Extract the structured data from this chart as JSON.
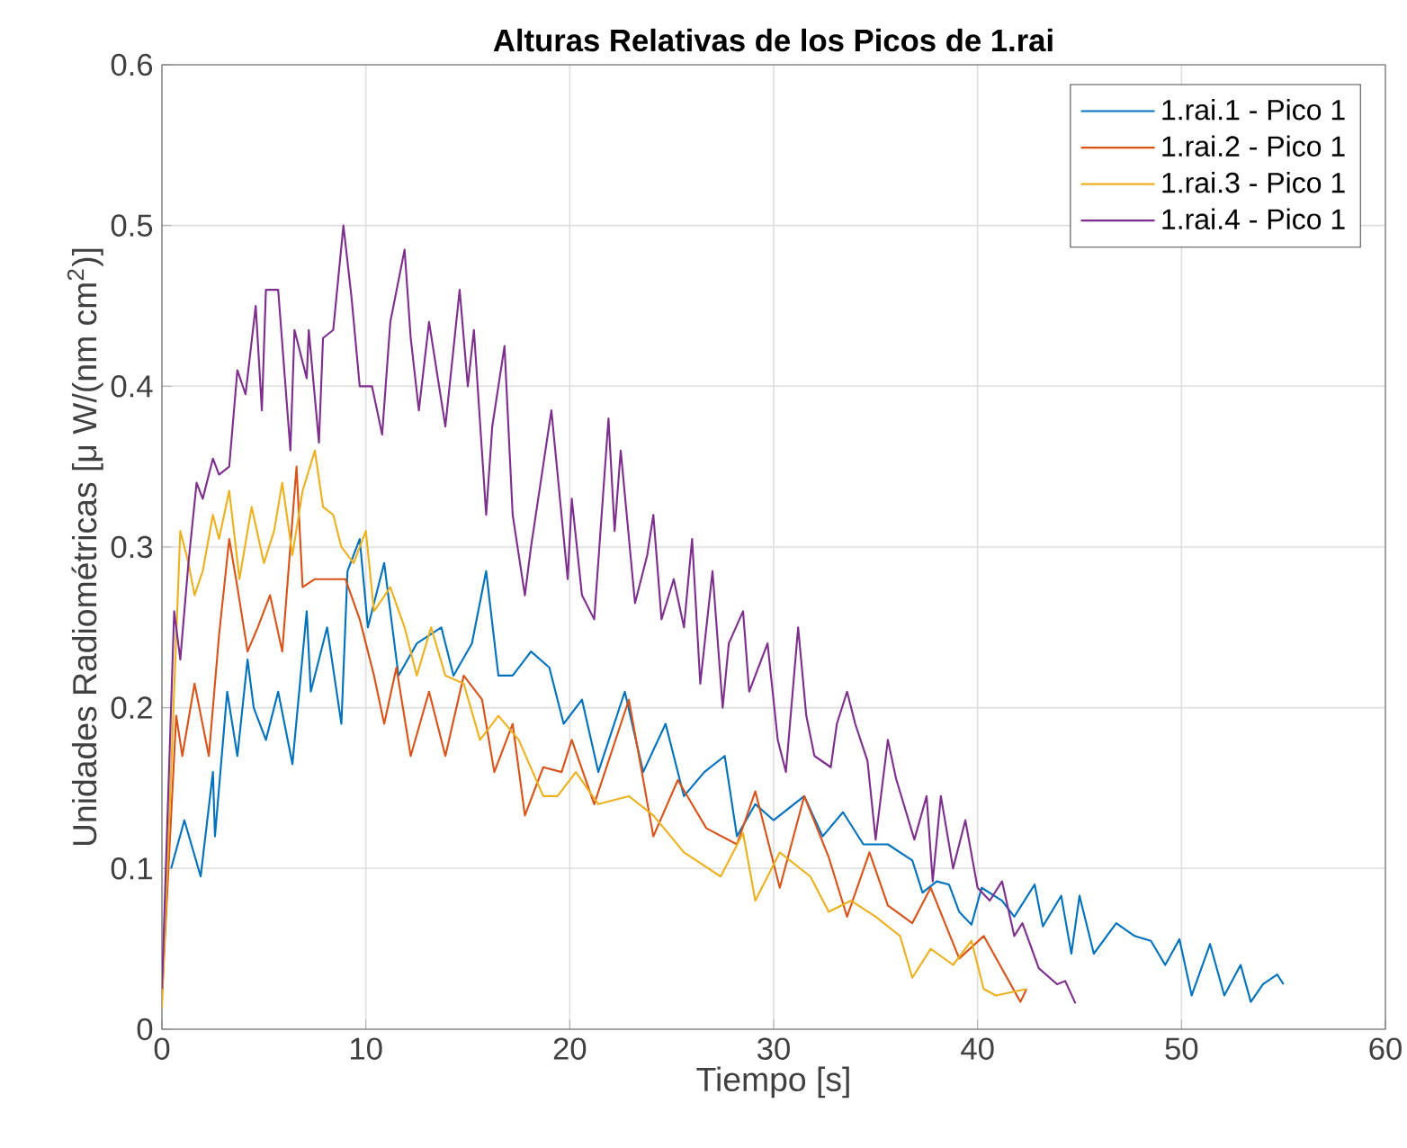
{
  "chart_data": {
    "type": "line",
    "title": "Alturas Relativas de los Picos de 1.rai",
    "xlabel": "Tiempo [s]",
    "ylabel": "Unidades Radiométricas [μ W/(nm cm$^{2}$)]",
    "xlim": [
      0,
      60
    ],
    "ylim": [
      0,
      0.6
    ],
    "xticks": [
      0,
      10,
      20,
      30,
      40,
      50,
      60
    ],
    "yticks": [
      0,
      0.1,
      0.2,
      0.3,
      0.4,
      0.5,
      0.6
    ],
    "grid": true,
    "legend": "top right",
    "series": [
      {
        "name": "1.rai.1 - Pico 1",
        "color": "#0072bd",
        "x": [
          0.45,
          1.1,
          1.9,
          2.5,
          2.6,
          3.2,
          3.7,
          4.2,
          4.5,
          5.1,
          5.7,
          6.4,
          7.1,
          7.3,
          8.1,
          8.8,
          9.1,
          9.7,
          10.1,
          10.9,
          11.6,
          12.5,
          13.7,
          14.3,
          15.2,
          15.9,
          16.5,
          17.2,
          18.1,
          19.0,
          19.7,
          20.6,
          21.4,
          22.7,
          23.6,
          24.7,
          25.6,
          26.6,
          27.6,
          28.2,
          29.1,
          30.0,
          31.5,
          32.4,
          33.4,
          34.4,
          35.6,
          36.8,
          37.3,
          38.0,
          38.6,
          39.1,
          39.7,
          40.2,
          41.2,
          41.8,
          42.8,
          43.2,
          44.1,
          44.6,
          45.0,
          45.7,
          46.8,
          47.7,
          48.5,
          49.2,
          49.9,
          50.5,
          51.4,
          52.1,
          52.9,
          53.4,
          54.0,
          54.7,
          55.0
        ],
        "values": [
          0.1,
          0.13,
          0.095,
          0.16,
          0.12,
          0.21,
          0.17,
          0.23,
          0.2,
          0.18,
          0.21,
          0.165,
          0.26,
          0.21,
          0.25,
          0.19,
          0.285,
          0.305,
          0.25,
          0.29,
          0.22,
          0.24,
          0.25,
          0.22,
          0.24,
          0.285,
          0.22,
          0.22,
          0.235,
          0.225,
          0.19,
          0.205,
          0.16,
          0.21,
          0.16,
          0.19,
          0.145,
          0.16,
          0.17,
          0.12,
          0.14,
          0.13,
          0.145,
          0.12,
          0.135,
          0.115,
          0.115,
          0.105,
          0.085,
          0.092,
          0.09,
          0.073,
          0.065,
          0.088,
          0.08,
          0.07,
          0.09,
          0.064,
          0.083,
          0.047,
          0.083,
          0.047,
          0.066,
          0.058,
          0.055,
          0.04,
          0.056,
          0.021,
          0.053,
          0.021,
          0.04,
          0.017,
          0.028,
          0.034,
          0.028
        ]
      },
      {
        "name": "1.rai.2 - Pico 1",
        "color": "#d95319",
        "x": [
          0,
          0.7,
          1.0,
          1.6,
          2.3,
          2.8,
          3.3,
          3.7,
          4.2,
          4.7,
          5.3,
          5.9,
          6.6,
          6.9,
          7.5,
          8.2,
          9.0,
          9.7,
          10.4,
          10.9,
          11.5,
          12.2,
          13.1,
          13.9,
          14.8,
          15.7,
          16.3,
          17.2,
          17.8,
          18.7,
          19.6,
          20.1,
          21.2,
          22.9,
          24.1,
          25.3,
          26.7,
          28.2,
          29.1,
          30.3,
          31.5,
          32.7,
          33.6,
          34.7,
          35.6,
          36.8,
          37.7,
          39.1,
          40.3,
          42.1,
          42.4
        ],
        "values": [
          0.02,
          0.195,
          0.17,
          0.215,
          0.17,
          0.245,
          0.305,
          0.275,
          0.235,
          0.25,
          0.27,
          0.235,
          0.35,
          0.275,
          0.28,
          0.28,
          0.28,
          0.255,
          0.22,
          0.19,
          0.225,
          0.17,
          0.21,
          0.17,
          0.22,
          0.205,
          0.16,
          0.19,
          0.133,
          0.163,
          0.16,
          0.18,
          0.14,
          0.205,
          0.12,
          0.155,
          0.125,
          0.115,
          0.148,
          0.088,
          0.145,
          0.107,
          0.07,
          0.11,
          0.077,
          0.066,
          0.088,
          0.044,
          0.058,
          0.017,
          0.025
        ]
      },
      {
        "name": "1.rai.3 - Pico 1",
        "color": "#edb120",
        "x": [
          0,
          0.9,
          1.3,
          1.6,
          2.0,
          2.5,
          2.8,
          3.3,
          3.8,
          4.4,
          5.0,
          5.5,
          5.9,
          6.4,
          6.9,
          7.5,
          7.9,
          8.4,
          8.8,
          9.4,
          10.0,
          10.4,
          11.2,
          11.9,
          12.5,
          13.2,
          13.9,
          14.8,
          15.6,
          16.5,
          17.5,
          18.7,
          19.4,
          20.3,
          21.4,
          22.9,
          24.1,
          25.6,
          27.4,
          28.5,
          29.1,
          30.3,
          31.8,
          32.7,
          33.8,
          35.0,
          36.2,
          36.8,
          37.7,
          38.8,
          39.7,
          40.3,
          40.9,
          42.4
        ],
        "values": [
          0.013,
          0.31,
          0.29,
          0.27,
          0.285,
          0.32,
          0.305,
          0.335,
          0.28,
          0.325,
          0.29,
          0.31,
          0.34,
          0.295,
          0.335,
          0.36,
          0.325,
          0.32,
          0.3,
          0.29,
          0.31,
          0.26,
          0.275,
          0.25,
          0.22,
          0.25,
          0.22,
          0.215,
          0.18,
          0.195,
          0.18,
          0.145,
          0.145,
          0.16,
          0.14,
          0.145,
          0.133,
          0.11,
          0.095,
          0.122,
          0.08,
          0.11,
          0.095,
          0.073,
          0.08,
          0.07,
          0.058,
          0.032,
          0.05,
          0.04,
          0.055,
          0.025,
          0.021,
          0.025
        ]
      },
      {
        "name": "1.rai.4 - Pico 1",
        "color": "#7e2f8e",
        "x": [
          0,
          0.6,
          0.9,
          1.3,
          1.7,
          2.0,
          2.5,
          2.8,
          3.3,
          3.7,
          4.1,
          4.6,
          4.9,
          5.1,
          5.7,
          6.3,
          6.5,
          7.1,
          7.2,
          7.7,
          7.9,
          8.4,
          8.9,
          9.3,
          9.7,
          10.3,
          10.8,
          11.2,
          11.9,
          12.2,
          12.6,
          13.1,
          13.9,
          14.6,
          15.0,
          15.3,
          15.9,
          16.2,
          16.8,
          17.2,
          17.8,
          18.1,
          19.1,
          19.9,
          20.1,
          20.6,
          21.2,
          21.9,
          22.2,
          22.5,
          23.2,
          23.8,
          24.1,
          24.5,
          25.1,
          25.6,
          26.0,
          26.4,
          27.0,
          27.5,
          27.8,
          28.5,
          28.8,
          29.7,
          30.2,
          30.6,
          31.2,
          31.6,
          32.0,
          32.8,
          33.1,
          33.6,
          34.0,
          34.6,
          35.0,
          35.6,
          36.0,
          36.9,
          37.5,
          37.8,
          38.2,
          38.8,
          39.4,
          40.0,
          40.6,
          41.2,
          41.8,
          42.2,
          43.0,
          43.9,
          44.3,
          44.8
        ],
        "values": [
          0.025,
          0.26,
          0.23,
          0.29,
          0.34,
          0.33,
          0.355,
          0.345,
          0.35,
          0.41,
          0.395,
          0.45,
          0.385,
          0.46,
          0.46,
          0.36,
          0.435,
          0.405,
          0.435,
          0.365,
          0.43,
          0.435,
          0.5,
          0.455,
          0.4,
          0.4,
          0.37,
          0.44,
          0.485,
          0.43,
          0.385,
          0.44,
          0.375,
          0.46,
          0.4,
          0.435,
          0.32,
          0.375,
          0.425,
          0.32,
          0.27,
          0.3,
          0.385,
          0.28,
          0.33,
          0.27,
          0.255,
          0.38,
          0.31,
          0.36,
          0.265,
          0.295,
          0.32,
          0.255,
          0.28,
          0.25,
          0.305,
          0.215,
          0.285,
          0.2,
          0.24,
          0.26,
          0.21,
          0.24,
          0.18,
          0.16,
          0.25,
          0.195,
          0.17,
          0.163,
          0.19,
          0.21,
          0.19,
          0.167,
          0.118,
          0.18,
          0.156,
          0.118,
          0.145,
          0.092,
          0.145,
          0.1,
          0.13,
          0.088,
          0.08,
          0.092,
          0.058,
          0.066,
          0.038,
          0.028,
          0.03,
          0.016
        ]
      }
    ]
  }
}
